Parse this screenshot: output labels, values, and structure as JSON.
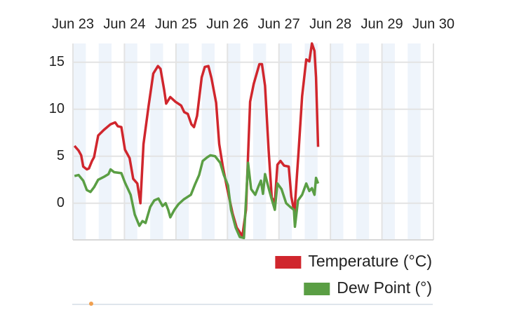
{
  "chart_data": {
    "type": "line",
    "xlim": [
      0,
      7
    ],
    "xticks": [
      {
        "value": 0,
        "label": "Jun 23"
      },
      {
        "value": 1,
        "label": "Jun 24"
      },
      {
        "value": 2,
        "label": "Jun 25"
      },
      {
        "value": 3,
        "label": "Jun 26"
      },
      {
        "value": 4,
        "label": "Jun 27"
      },
      {
        "value": 5,
        "label": "Jun 28"
      },
      {
        "value": 6,
        "label": "Jun 29"
      },
      {
        "value": 7,
        "label": "Jun 30"
      }
    ],
    "ylim": [
      -3.9,
      17
    ],
    "yticks": [
      0,
      5,
      10,
      15
    ],
    "grid": true,
    "legend": "bottom-right",
    "series": [
      {
        "name": "Temperature (°C)",
        "color": "#d0262d",
        "x": [
          0.03,
          0.11,
          0.16,
          0.2,
          0.27,
          0.31,
          0.37,
          0.41,
          0.49,
          0.6,
          0.73,
          0.82,
          0.87,
          0.94,
          1.01,
          1.1,
          1.17,
          1.25,
          1.31,
          1.37,
          1.47,
          1.56,
          1.65,
          1.7,
          1.77,
          1.81,
          1.89,
          1.99,
          2.1,
          2.16,
          2.23,
          2.3,
          2.35,
          2.41,
          2.5,
          2.56,
          2.63,
          2.69,
          2.78,
          2.84,
          2.91,
          2.99,
          3.1,
          3.18,
          3.29,
          3.36,
          3.44,
          3.51,
          3.62,
          3.67,
          3.73,
          3.8,
          3.86,
          3.92,
          3.97,
          4.03,
          4.1,
          4.19,
          4.24,
          4.3,
          4.38,
          4.45,
          4.53,
          4.59,
          4.64,
          4.69,
          4.72,
          4.76
        ],
        "values": [
          6.1,
          5.6,
          5.1,
          3.9,
          3.6,
          3.7,
          4.5,
          4.9,
          7.2,
          7.8,
          8.4,
          8.6,
          8.2,
          8.1,
          5.7,
          4.8,
          2.6,
          2.1,
          0,
          6.3,
          10.4,
          13.8,
          14.6,
          14.3,
          12.1,
          10.6,
          11.3,
          10.8,
          10.4,
          9.7,
          9.5,
          8.4,
          8.1,
          9.3,
          13.4,
          14.5,
          14.6,
          13.3,
          10.7,
          6.3,
          3.9,
          1.7,
          -1.1,
          -2.6,
          -3.5,
          -0.7,
          10.8,
          12.7,
          14.8,
          14.8,
          12.5,
          5.6,
          0.6,
          0.1,
          4.1,
          4.5,
          4,
          3.9,
          0.7,
          -1,
          5.4,
          11.4,
          15.3,
          15.1,
          17,
          16.2,
          13.4,
          6
        ]
      },
      {
        "name": "Dew Point (°)",
        "color": "#5a9e44",
        "x": [
          0.03,
          0.11,
          0.2,
          0.27,
          0.34,
          0.41,
          0.49,
          0.6,
          0.69,
          0.73,
          0.8,
          0.94,
          1.01,
          1.12,
          1.2,
          1.29,
          1.35,
          1.41,
          1.5,
          1.58,
          1.66,
          1.74,
          1.8,
          1.85,
          1.89,
          1.97,
          2.05,
          2.15,
          2.29,
          2.37,
          2.45,
          2.52,
          2.61,
          2.67,
          2.76,
          2.86,
          2.93,
          3.01,
          3.07,
          3.16,
          3.24,
          3.32,
          3.4,
          3.46,
          3.54,
          3.61,
          3.65,
          3.69,
          3.73,
          3.8,
          3.85,
          3.92,
          3.97,
          4.05,
          4.14,
          4.22,
          4.29,
          4.31,
          4.37,
          4.45,
          4.53,
          4.59,
          4.64,
          4.69,
          4.72,
          4.76
        ],
        "values": [
          2.9,
          3,
          2.4,
          1.4,
          1.2,
          1.7,
          2.5,
          2.8,
          3.1,
          3.6,
          3.3,
          3.2,
          2.2,
          0.9,
          -1.2,
          -2.4,
          -1.9,
          -2.1,
          -0.4,
          0.3,
          0.5,
          -0.3,
          0,
          -0.7,
          -1.5,
          -0.7,
          -0.1,
          0.4,
          0.9,
          2,
          3,
          4.5,
          4.9,
          5.1,
          5,
          4.3,
          3,
          1.9,
          -0.7,
          -2.6,
          -3.6,
          -3.7,
          4.3,
          1.5,
          0.9,
          1.9,
          2.4,
          1,
          3.1,
          1.6,
          0.6,
          -0.7,
          2.1,
          1.5,
          0,
          -0.4,
          -0.7,
          -2.5,
          0.3,
          0.9,
          2.1,
          1.3,
          1.6,
          0.9,
          2.7,
          2.1
        ]
      }
    ]
  }
}
